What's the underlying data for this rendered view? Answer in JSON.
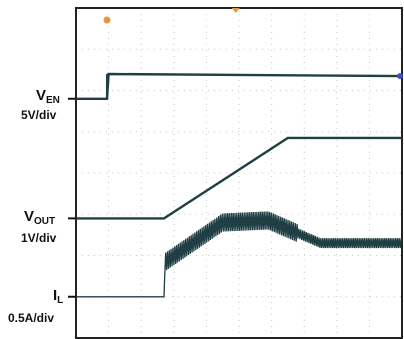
{
  "chart_data": {
    "type": "line",
    "title": "",
    "xlabel": "",
    "ylabel": "",
    "grid": true,
    "channels": [
      {
        "name": "V",
        "subscript": "EN",
        "scale": "5V/div"
      },
      {
        "name": "V",
        "subscript": "OUT",
        "scale": "1V/div"
      },
      {
        "name": "I",
        "subscript": "L",
        "scale": "0.5A/div"
      }
    ],
    "x_range_div": [
      0,
      10
    ],
    "y_range_div": [
      0,
      8
    ],
    "series": [
      {
        "name": "V_EN",
        "x": [
          0,
          0.95,
          1.0,
          10
        ],
        "y": [
          5.8,
          5.8,
          6.4,
          6.35
        ]
      },
      {
        "name": "V_OUT",
        "x": [
          0,
          2.7,
          6.5,
          10
        ],
        "y": [
          2.9,
          2.9,
          4.85,
          4.85
        ]
      },
      {
        "name": "I_L",
        "x": [
          0,
          2.7,
          2.75,
          4.5,
          5.9,
          7.5,
          10
        ],
        "y": [
          1.0,
          1.0,
          1.85,
          2.8,
          2.85,
          2.3,
          2.3
        ]
      }
    ],
    "trace_color": "#1f3f44",
    "marker_colors": {
      "trigger": "#e8963a",
      "channel": "#3a4fd8"
    }
  }
}
